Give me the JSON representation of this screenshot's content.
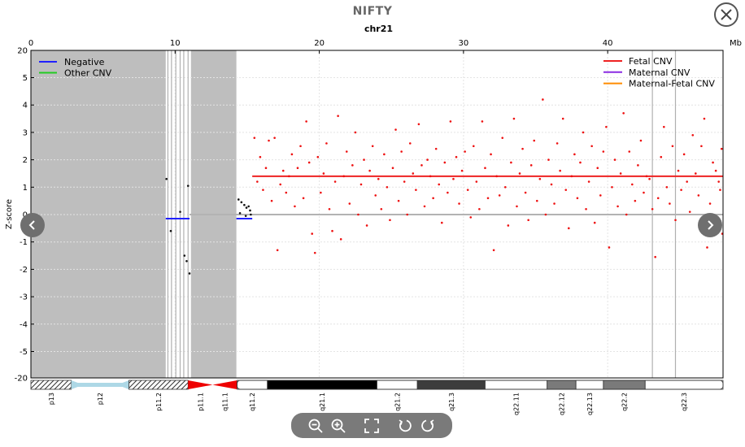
{
  "header": {
    "title": "NIFTY"
  },
  "controls": {
    "close_icon": "close-icon",
    "prev_icon": "chevron-left-icon",
    "next_icon": "chevron-right-icon",
    "toolbar_icons": [
      "zoom-out-icon",
      "zoom-in-icon",
      "fullscreen-icon",
      "rotate-left-icon",
      "rotate-right-icon"
    ]
  },
  "chart_data": {
    "type": "scatter",
    "title": "chr21",
    "xlabel": "",
    "x_unit": "Mb",
    "ylabel": "Z-score",
    "xlim": [
      0,
      48
    ],
    "ylim": [
      -20,
      20
    ],
    "xticks": [
      0,
      10,
      20,
      30,
      40
    ],
    "yticks": [
      20,
      5,
      4,
      3,
      2,
      1,
      0,
      -1,
      -2,
      -3,
      -4,
      -5,
      -20
    ],
    "legend_left": [
      {
        "label": "Negative",
        "color": "#2020ff"
      },
      {
        "label": "Other CNV",
        "color": "#22cc22"
      }
    ],
    "legend_right": [
      {
        "label": "Fetal CNV",
        "color": "#ee2222"
      },
      {
        "label": "Maternal CNV",
        "color": "#8a2be2"
      },
      {
        "label": "Maternal-Fetal CNV",
        "color": "#ff8c00"
      }
    ],
    "masked_regions": [
      [
        0,
        9.35
      ],
      [
        11.1,
        14.25
      ]
    ],
    "gap_lines_mb": [
      9.5,
      9.75,
      10.05,
      10.35,
      10.6,
      10.9,
      43.1,
      44.7
    ],
    "segments": [
      {
        "name": "Negative",
        "color": "#2020ff",
        "x0": 9.35,
        "x1": 11.0,
        "y": -0.15
      },
      {
        "name": "Negative",
        "color": "#2020ff",
        "x0": 14.25,
        "x1": 15.35,
        "y": -0.15
      },
      {
        "name": "Fetal CNV",
        "color": "#ee2222",
        "x0": 15.35,
        "x1": 48,
        "y": 1.4
      }
    ],
    "baseline": 0,
    "black_points": [
      [
        9.4,
        1.3
      ],
      [
        9.7,
        -0.6
      ],
      [
        10.35,
        0.1
      ],
      [
        10.65,
        -1.5
      ],
      [
        10.8,
        -1.7
      ],
      [
        10.9,
        1.05
      ],
      [
        11.0,
        -2.15
      ],
      [
        14.4,
        0.55
      ],
      [
        14.6,
        0.45
      ],
      [
        14.8,
        0.35
      ],
      [
        14.95,
        0.25
      ],
      [
        15.1,
        0.3
      ],
      [
        15.2,
        0.15
      ],
      [
        14.5,
        0.05
      ],
      [
        14.9,
        -0.05
      ],
      [
        15.25,
        0.0
      ]
    ],
    "red_points": [
      [
        15.5,
        2.8
      ],
      [
        15.7,
        1.2
      ],
      [
        15.9,
        2.1
      ],
      [
        16.1,
        0.9
      ],
      [
        16.3,
        1.7
      ],
      [
        16.5,
        2.7
      ],
      [
        16.7,
        0.5
      ],
      [
        16.9,
        2.8
      ],
      [
        17.1,
        -1.3
      ],
      [
        17.3,
        1.1
      ],
      [
        17.5,
        1.6
      ],
      [
        17.7,
        0.8
      ],
      [
        17.9,
        1.4
      ],
      [
        18.1,
        2.2
      ],
      [
        18.3,
        0.3
      ],
      [
        18.5,
        1.7
      ],
      [
        18.7,
        2.5
      ],
      [
        18.9,
        0.6
      ],
      [
        19.1,
        3.4
      ],
      [
        19.3,
        1.9
      ],
      [
        19.5,
        -0.7
      ],
      [
        19.7,
        -1.4
      ],
      [
        19.9,
        2.1
      ],
      [
        20.1,
        0.8
      ],
      [
        20.3,
        1.5
      ],
      [
        20.5,
        2.6
      ],
      [
        20.7,
        0.2
      ],
      [
        20.9,
        -0.6
      ],
      [
        21.1,
        1.2
      ],
      [
        21.3,
        3.6
      ],
      [
        21.5,
        -0.9
      ],
      [
        21.7,
        1.4
      ],
      [
        21.9,
        2.3
      ],
      [
        22.1,
        0.4
      ],
      [
        22.3,
        1.8
      ],
      [
        22.5,
        3.0
      ],
      [
        22.7,
        0.0
      ],
      [
        22.9,
        1.1
      ],
      [
        23.1,
        2.0
      ],
      [
        23.3,
        -0.4
      ],
      [
        23.5,
        1.6
      ],
      [
        23.7,
        2.5
      ],
      [
        23.9,
        0.7
      ],
      [
        24.1,
        1.3
      ],
      [
        24.3,
        0.2
      ],
      [
        24.5,
        2.2
      ],
      [
        24.7,
        1.0
      ],
      [
        24.9,
        -0.2
      ],
      [
        25.1,
        1.7
      ],
      [
        25.3,
        3.1
      ],
      [
        25.5,
        0.5
      ],
      [
        25.7,
        2.3
      ],
      [
        25.9,
        1.2
      ],
      [
        26.1,
        0.0
      ],
      [
        26.3,
        2.6
      ],
      [
        26.5,
        1.5
      ],
      [
        26.7,
        0.9
      ],
      [
        26.9,
        3.3
      ],
      [
        27.1,
        1.8
      ],
      [
        27.3,
        0.3
      ],
      [
        27.5,
        2.0
      ],
      [
        27.7,
        1.4
      ],
      [
        27.9,
        0.6
      ],
      [
        28.1,
        2.4
      ],
      [
        28.3,
        1.1
      ],
      [
        28.5,
        -0.3
      ],
      [
        28.7,
        1.9
      ],
      [
        28.9,
        0.8
      ],
      [
        29.1,
        3.4
      ],
      [
        29.3,
        1.3
      ],
      [
        29.5,
        2.1
      ],
      [
        29.7,
        0.4
      ],
      [
        29.9,
        1.6
      ],
      [
        30.1,
        2.3
      ],
      [
        30.3,
        0.9
      ],
      [
        30.5,
        -0.1
      ],
      [
        30.7,
        2.5
      ],
      [
        30.9,
        1.2
      ],
      [
        31.1,
        0.2
      ],
      [
        31.3,
        3.4
      ],
      [
        31.5,
        1.7
      ],
      [
        31.7,
        0.6
      ],
      [
        31.9,
        2.2
      ],
      [
        32.1,
        -1.3
      ],
      [
        32.3,
        1.4
      ],
      [
        32.5,
        0.7
      ],
      [
        32.7,
        2.8
      ],
      [
        32.9,
        1.0
      ],
      [
        33.1,
        -0.4
      ],
      [
        33.3,
        1.9
      ],
      [
        33.5,
        3.5
      ],
      [
        33.7,
        0.3
      ],
      [
        33.9,
        1.5
      ],
      [
        34.1,
        2.4
      ],
      [
        34.3,
        0.8
      ],
      [
        34.5,
        -0.2
      ],
      [
        34.7,
        1.8
      ],
      [
        34.9,
        2.7
      ],
      [
        35.1,
        0.5
      ],
      [
        35.3,
        1.3
      ],
      [
        35.5,
        4.2
      ],
      [
        35.7,
        0.0
      ],
      [
        35.9,
        2.0
      ],
      [
        36.1,
        1.1
      ],
      [
        36.3,
        0.4
      ],
      [
        36.5,
        2.6
      ],
      [
        36.7,
        1.6
      ],
      [
        36.9,
        3.5
      ],
      [
        37.1,
        0.9
      ],
      [
        37.3,
        -0.5
      ],
      [
        37.5,
        1.4
      ],
      [
        37.7,
        2.2
      ],
      [
        37.9,
        0.6
      ],
      [
        38.1,
        1.9
      ],
      [
        38.3,
        3.0
      ],
      [
        38.5,
        0.2
      ],
      [
        38.7,
        1.2
      ],
      [
        38.9,
        2.5
      ],
      [
        39.1,
        -0.3
      ],
      [
        39.3,
        1.7
      ],
      [
        39.5,
        0.7
      ],
      [
        39.7,
        2.3
      ],
      [
        39.9,
        3.2
      ],
      [
        40.1,
        -1.2
      ],
      [
        40.3,
        1.0
      ],
      [
        40.5,
        2.0
      ],
      [
        40.7,
        0.3
      ],
      [
        40.9,
        1.5
      ],
      [
        41.1,
        3.7
      ],
      [
        41.3,
        0.0
      ],
      [
        41.5,
        2.3
      ],
      [
        41.7,
        1.1
      ],
      [
        41.9,
        0.5
      ],
      [
        42.1,
        1.8
      ],
      [
        42.3,
        2.7
      ],
      [
        42.5,
        0.8
      ],
      [
        42.7,
        1.4
      ],
      [
        42.9,
        1.3
      ],
      [
        43.1,
        0.2
      ],
      [
        43.3,
        -1.55
      ],
      [
        43.5,
        0.6
      ],
      [
        43.7,
        2.1
      ],
      [
        43.9,
        3.2
      ],
      [
        44.1,
        1.0
      ],
      [
        44.3,
        0.4
      ],
      [
        44.5,
        2.5
      ],
      [
        44.7,
        -0.2
      ],
      [
        44.9,
        1.6
      ],
      [
        45.1,
        0.9
      ],
      [
        45.3,
        2.2
      ],
      [
        45.5,
        1.2
      ],
      [
        45.7,
        0.1
      ],
      [
        45.9,
        2.9
      ],
      [
        46.1,
        1.5
      ],
      [
        46.3,
        0.7
      ],
      [
        46.5,
        2.5
      ],
      [
        46.7,
        3.5
      ],
      [
        46.9,
        -1.2
      ],
      [
        47.1,
        0.4
      ],
      [
        47.3,
        1.9
      ],
      [
        47.5,
        1.6
      ],
      [
        47.7,
        1.2
      ],
      [
        47.9,
        2.4
      ],
      [
        47.95,
        -0.7
      ],
      [
        47.8,
        0.9
      ]
    ],
    "ideogram": [
      {
        "name": "p13",
        "start": 0,
        "end": 2.8,
        "stain": "hatched"
      },
      {
        "name": "p12",
        "start": 2.8,
        "end": 6.8,
        "stain": "stalk"
      },
      {
        "name": "p11.2",
        "start": 6.8,
        "end": 10.9,
        "stain": "hatched"
      },
      {
        "name": "p11.1",
        "start": 10.9,
        "end": 12.6,
        "stain": "centromere-p"
      },
      {
        "name": "q11.1",
        "start": 12.6,
        "end": 14.3,
        "stain": "centromere-q"
      },
      {
        "name": "q11.2",
        "start": 14.3,
        "end": 16.4,
        "stain": "gneg"
      },
      {
        "name": "q21.1",
        "start": 16.4,
        "end": 24.0,
        "stain": "gpos100"
      },
      {
        "name": "q21.2",
        "start": 24.0,
        "end": 26.8,
        "stain": "gneg"
      },
      {
        "name": "q21.3",
        "start": 26.8,
        "end": 31.5,
        "stain": "gpos75"
      },
      {
        "name": "q22.11",
        "start": 31.5,
        "end": 35.8,
        "stain": "gneg"
      },
      {
        "name": "q22.12",
        "start": 35.8,
        "end": 37.8,
        "stain": "gpos50"
      },
      {
        "name": "q22.13",
        "start": 37.8,
        "end": 39.7,
        "stain": "gneg"
      },
      {
        "name": "q22.2",
        "start": 39.7,
        "end": 42.6,
        "stain": "gpos50"
      },
      {
        "name": "q22.3",
        "start": 42.6,
        "end": 48.0,
        "stain": "gneg"
      }
    ]
  }
}
